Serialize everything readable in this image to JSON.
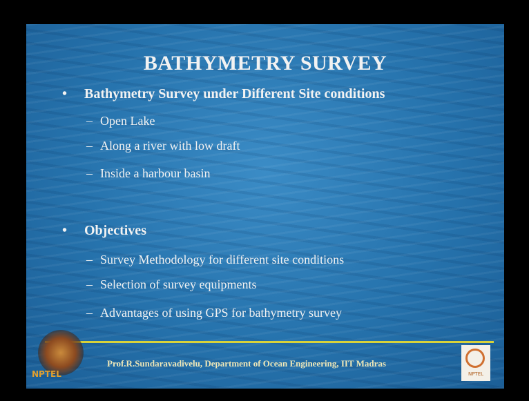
{
  "slide": {
    "title": "BATHYMETRY SURVEY",
    "sections": [
      {
        "heading": "Bathymetry Survey under Different Site conditions",
        "items": [
          "Open Lake",
          "Along a river with low draft",
          "Inside a harbour basin"
        ]
      },
      {
        "heading": "Objectives",
        "items": [
          "Survey Methodology for different site conditions",
          "Selection of survey equipments",
          "Advantages of using GPS for bathymetry survey"
        ]
      }
    ],
    "footer": "Prof.R.Sundaravadivelu, Department of Ocean Engineering,  IIT Madras",
    "logos": {
      "left": "NPTEL",
      "right": "NPTEL"
    }
  }
}
